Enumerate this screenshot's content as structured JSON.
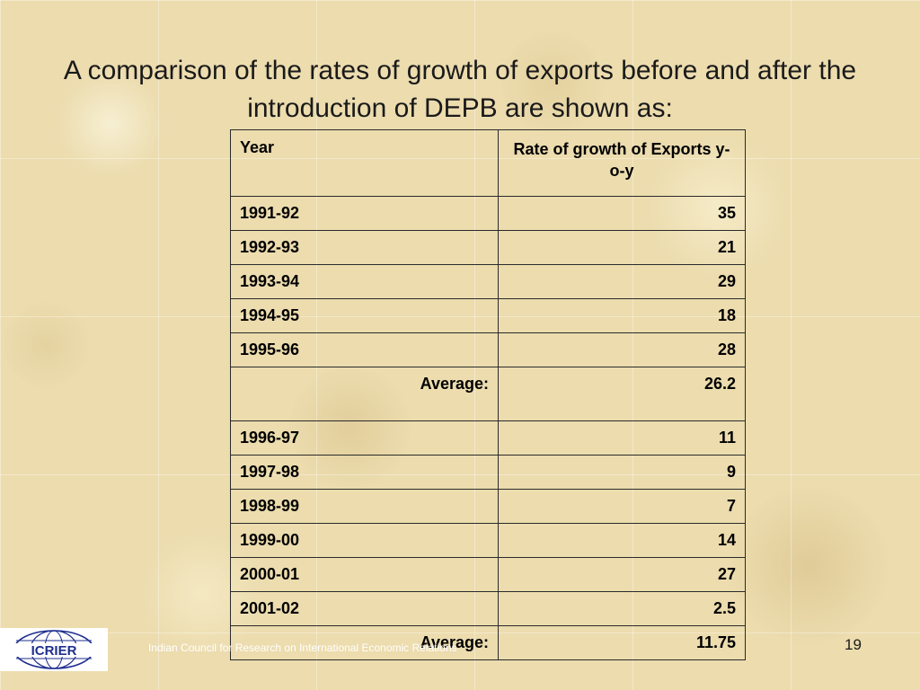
{
  "slide": {
    "title": "A comparison of the rates of growth of exports before and after the introduction of DEPB are shown as:",
    "page_number": "19"
  },
  "table": {
    "headers": {
      "year": "Year",
      "rate": "Rate of growth of Exports y-o-y"
    },
    "before": [
      {
        "year": "1991-92",
        "value": "35"
      },
      {
        "year": "1992-93",
        "value": "21"
      },
      {
        "year": "1993-94",
        "value": "29"
      },
      {
        "year": "1994-95",
        "value": "18"
      },
      {
        "year": "1995-96",
        "value": "28"
      }
    ],
    "before_average": {
      "label": "Average:",
      "value": "26.2"
    },
    "after": [
      {
        "year": "1996-97",
        "value": "11"
      },
      {
        "year": "1997-98",
        "value": "9"
      },
      {
        "year": "1998-99",
        "value": "7"
      },
      {
        "year": "1999-00",
        "value": "14"
      },
      {
        "year": "2000-01",
        "value": "27"
      },
      {
        "year": "2001-02",
        "value": "2.5"
      }
    ],
    "after_average": {
      "label": "Average:",
      "value": "11.75"
    }
  },
  "footer": {
    "logo_text": "ICRIER",
    "organization": "Indian Council for Research on International Economic Relations",
    "logo_color": "#1f2f8f"
  }
}
